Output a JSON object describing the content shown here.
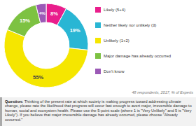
{
  "chart_data": {
    "type": "donut",
    "categories": [
      "Likely (5+4)",
      "Neither likely nor unlikely (3)",
      "Unlikely (1+2)",
      "Major damage has already occurred",
      "Don't know"
    ],
    "values": [
      8,
      19,
      55,
      15,
      4
    ],
    "value_labels": [
      "8%",
      "19%",
      "55%",
      "15%",
      "4%"
    ],
    "colors": [
      "#e91e8c",
      "#29b6d4",
      "#f5e600",
      "#7dc242",
      "#9b59b6"
    ],
    "data_labels": true,
    "legend": "right",
    "annotations": [
      "48 respondents, 2017, % of Experts",
      "Question:",
      " Thinking of the present rate at which society is making progress toward addressing climate change, please rate the likelihood that progress will occur fast enough to avert major, irreversible damage to human, social and ecosystem health. Please use the 5-point scale (where 1 is \"Very Unlikely\" and 5 is \"Very Likely\"). If you believe that major irreversible damage has already occurred, please choose \"Already occurred.\""
    ]
  }
}
